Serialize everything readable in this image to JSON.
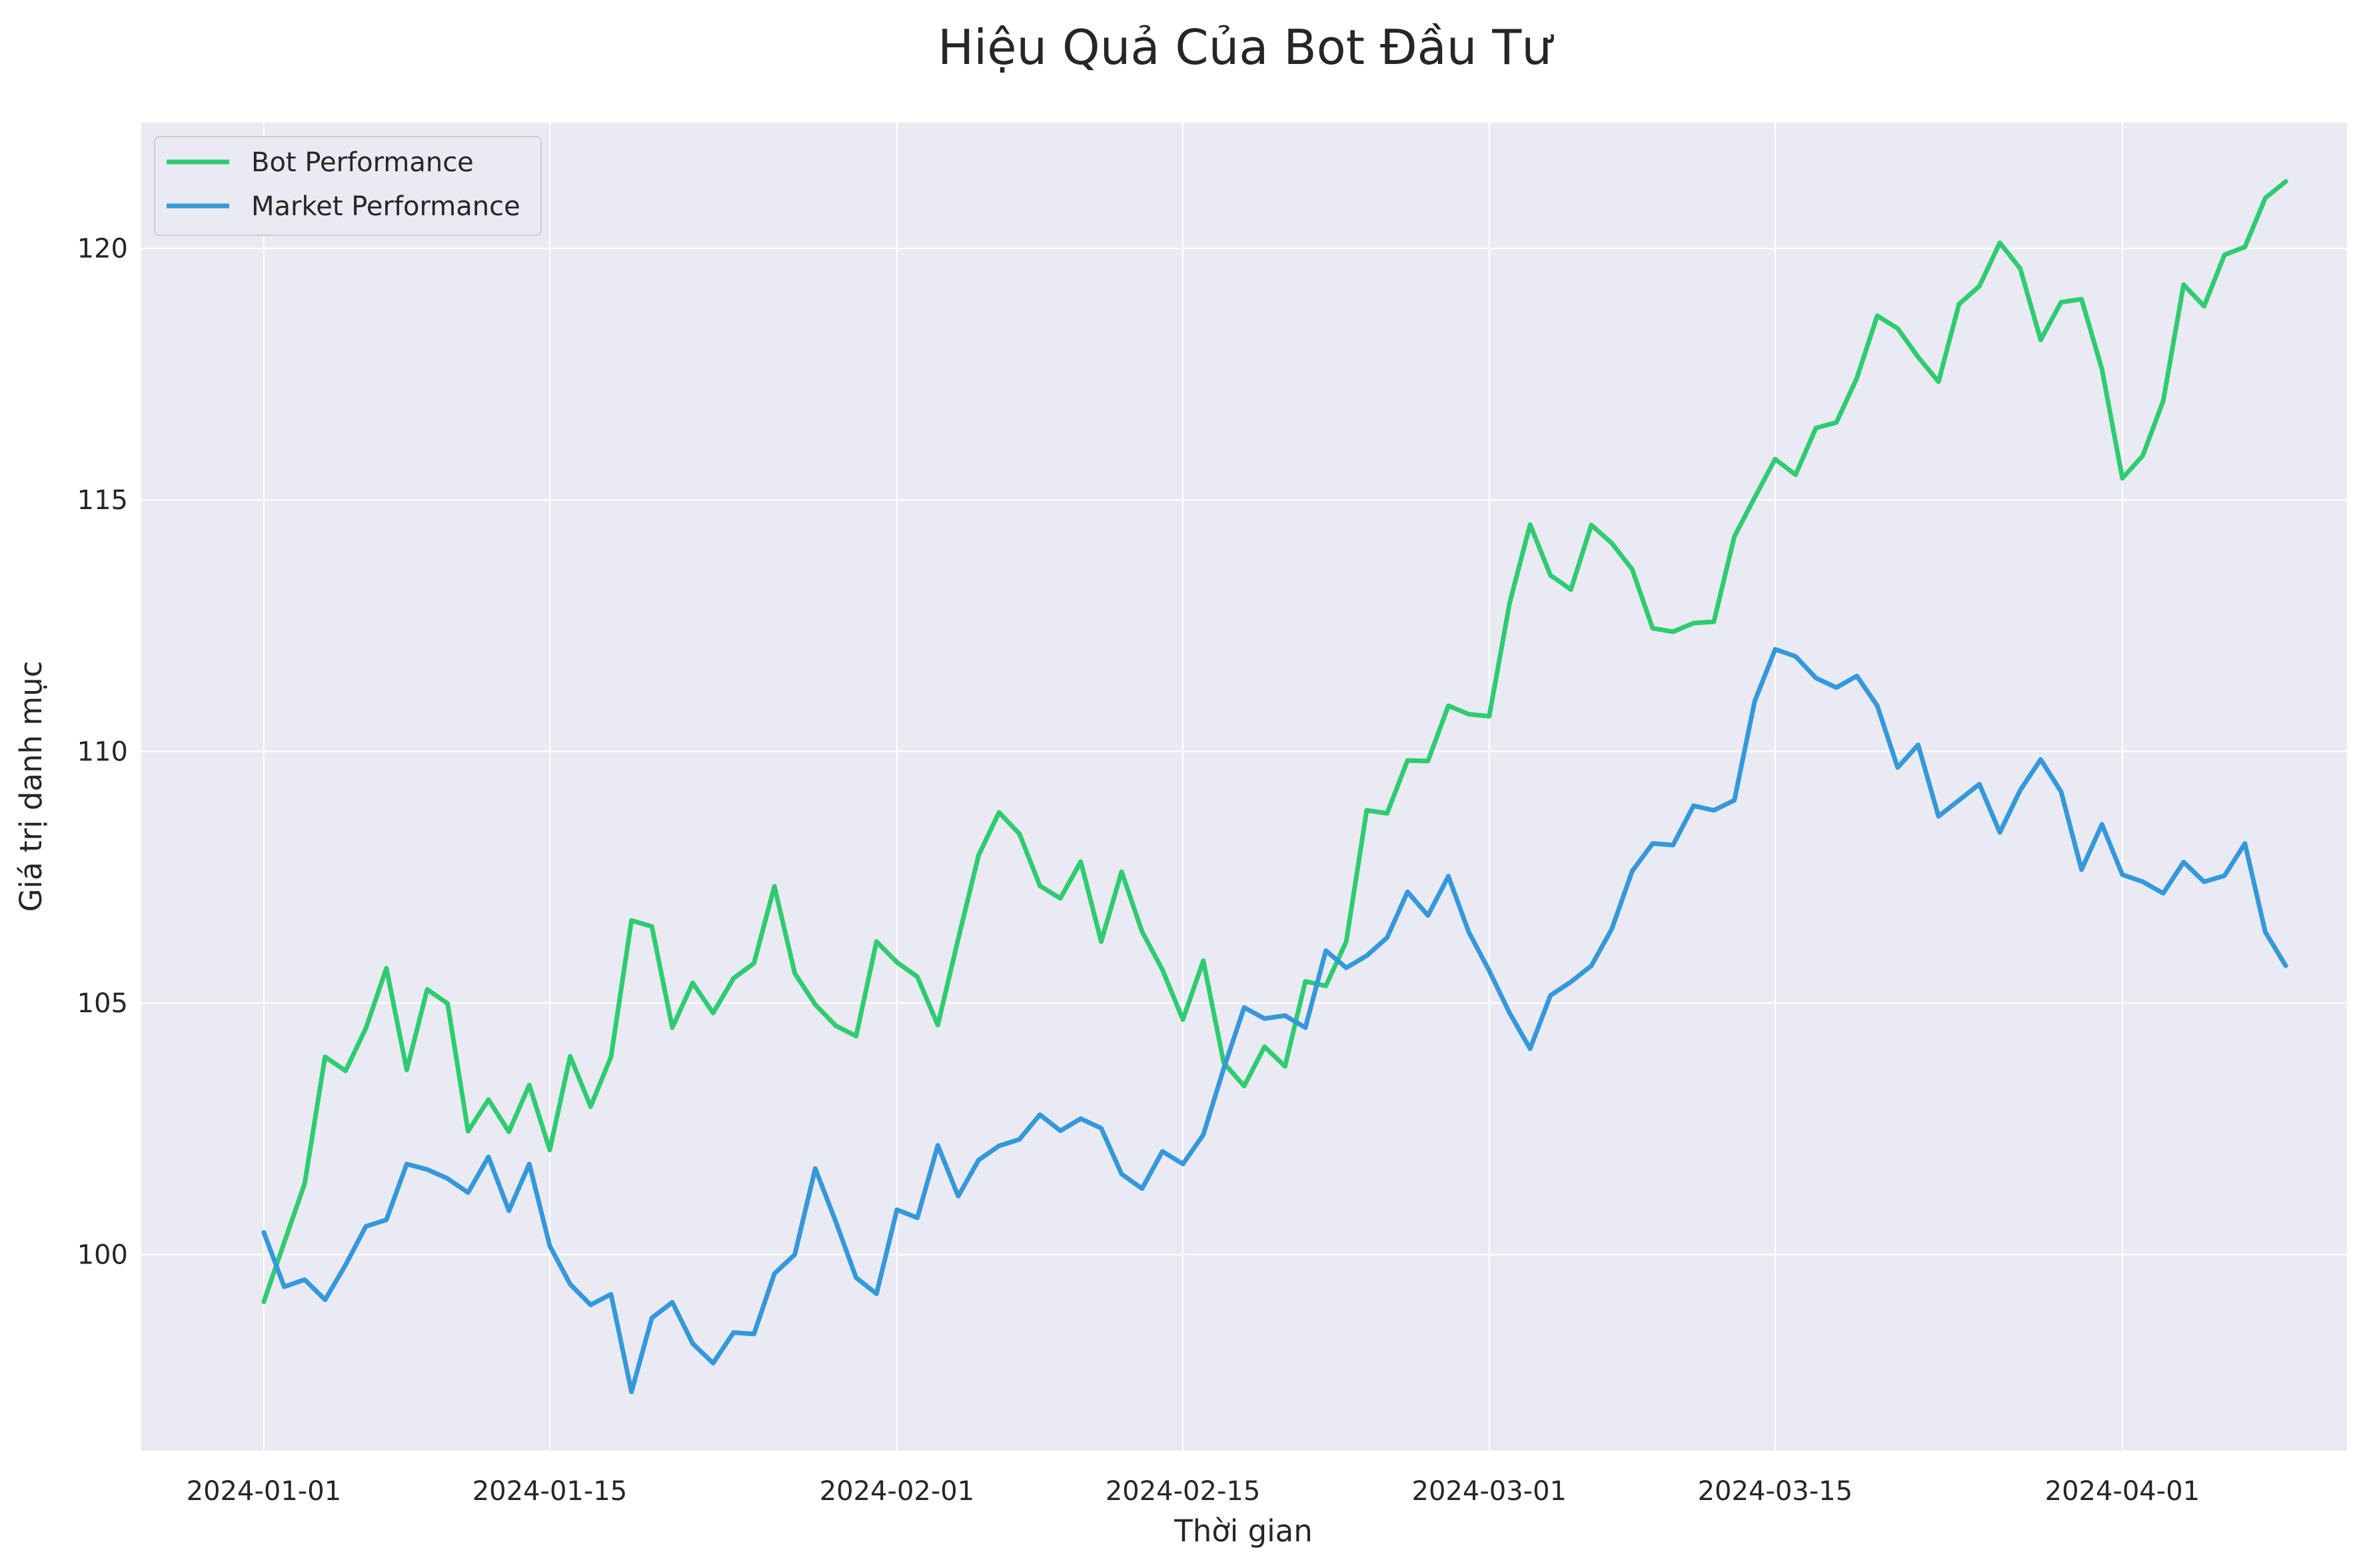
{
  "chart_data": {
    "type": "line",
    "title": "Hiệu Quả Của Bot Đầu Tư",
    "xlabel": "Thời gian",
    "ylabel": "Giá trị danh mục",
    "xlim": [
      "2023-12-26",
      "2024-04-12"
    ],
    "ylim": [
      96.1,
      122.5
    ],
    "grid": true,
    "legend_position": "top-left",
    "x_ticks": [
      "2024-01-01",
      "2024-01-15",
      "2024-02-01",
      "2024-02-15",
      "2024-03-01",
      "2024-03-15",
      "2024-04-01"
    ],
    "y_ticks": [
      100,
      105,
      110,
      115,
      120
    ],
    "x_start": "2024-01-01",
    "x": [
      "2024-01-01",
      "2024-01-02",
      "2024-01-03",
      "2024-01-04",
      "2024-01-05",
      "2024-01-06",
      "2024-01-07",
      "2024-01-08",
      "2024-01-09",
      "2024-01-10",
      "2024-01-11",
      "2024-01-12",
      "2024-01-13",
      "2024-01-14",
      "2024-01-15",
      "2024-01-16",
      "2024-01-17",
      "2024-01-18",
      "2024-01-19",
      "2024-01-20",
      "2024-01-21",
      "2024-01-22",
      "2024-01-23",
      "2024-01-24",
      "2024-01-25",
      "2024-01-26",
      "2024-01-27",
      "2024-01-28",
      "2024-01-29",
      "2024-01-30",
      "2024-01-31",
      "2024-02-01",
      "2024-02-02",
      "2024-02-03",
      "2024-02-04",
      "2024-02-05",
      "2024-02-06",
      "2024-02-07",
      "2024-02-08",
      "2024-02-09",
      "2024-02-10",
      "2024-02-11",
      "2024-02-12",
      "2024-02-13",
      "2024-02-14",
      "2024-02-15",
      "2024-02-16",
      "2024-02-17",
      "2024-02-18",
      "2024-02-19",
      "2024-02-20",
      "2024-02-21",
      "2024-02-22",
      "2024-02-23",
      "2024-02-24",
      "2024-02-25",
      "2024-02-26",
      "2024-02-27",
      "2024-02-28",
      "2024-02-29",
      "2024-03-01",
      "2024-03-02",
      "2024-03-03",
      "2024-03-04",
      "2024-03-05",
      "2024-03-06",
      "2024-03-07",
      "2024-03-08",
      "2024-03-09",
      "2024-03-10",
      "2024-03-11",
      "2024-03-12",
      "2024-03-13",
      "2024-03-14",
      "2024-03-15",
      "2024-03-16",
      "2024-03-17",
      "2024-03-18",
      "2024-03-19",
      "2024-03-20",
      "2024-03-21",
      "2024-03-22",
      "2024-03-23",
      "2024-03-24",
      "2024-03-25",
      "2024-03-26",
      "2024-03-27",
      "2024-03-28",
      "2024-03-29",
      "2024-03-30",
      "2024-03-31",
      "2024-04-01",
      "2024-04-02",
      "2024-04-03",
      "2024-04-04",
      "2024-04-05",
      "2024-04-06",
      "2024-04-07",
      "2024-04-08",
      "2024-04-09"
    ],
    "series": [
      {
        "name": "Bot Performance",
        "color": "#2ecc71",
        "values": [
          99.06,
          100.24,
          101.41,
          103.93,
          103.65,
          104.5,
          105.69,
          103.67,
          105.27,
          104.99,
          102.45,
          103.08,
          102.44,
          103.37,
          102.08,
          103.94,
          102.94,
          103.93,
          106.64,
          106.52,
          104.51,
          105.4,
          104.8,
          105.49,
          105.79,
          107.32,
          105.59,
          104.97,
          104.55,
          104.34,
          106.22,
          105.81,
          105.52,
          104.56,
          106.27,
          107.94,
          108.79,
          108.36,
          107.33,
          107.08,
          107.81,
          106.22,
          107.61,
          106.42,
          105.66,
          104.67,
          105.84,
          103.81,
          103.35,
          104.13,
          103.74,
          105.43,
          105.34,
          106.22,
          108.83,
          108.77,
          109.82,
          109.81,
          110.91,
          110.74,
          110.7,
          112.95,
          114.51,
          113.5,
          113.22,
          114.5,
          114.14,
          113.62,
          112.45,
          112.38,
          112.55,
          112.58,
          114.27,
          115.05,
          115.81,
          115.5,
          116.43,
          116.54,
          117.42,
          118.66,
          118.41,
          117.84,
          117.35,
          118.89,
          119.25,
          120.11,
          119.6,
          118.18,
          118.93,
          118.99,
          117.6,
          115.43,
          115.88,
          116.97,
          119.28,
          118.85,
          119.87,
          120.03,
          121.0,
          121.33
        ]
      },
      {
        "name": "Market Performance",
        "color": "#3498db",
        "values": [
          100.44,
          99.36,
          99.5,
          99.1,
          99.79,
          100.56,
          100.69,
          101.8,
          101.69,
          101.51,
          101.23,
          101.94,
          100.87,
          101.8,
          100.17,
          99.41,
          99.0,
          99.21,
          97.27,
          98.74,
          99.05,
          98.23,
          97.84,
          98.45,
          98.42,
          99.62,
          100.0,
          101.71,
          100.66,
          99.54,
          99.22,
          100.89,
          100.73,
          102.17,
          101.16,
          101.88,
          102.16,
          102.29,
          102.78,
          102.46,
          102.7,
          102.51,
          101.6,
          101.31,
          102.05,
          101.8,
          102.38,
          103.7,
          104.91,
          104.69,
          104.75,
          104.51,
          106.04,
          105.7,
          105.94,
          106.3,
          107.21,
          106.74,
          107.52,
          106.41,
          105.64,
          104.8,
          104.09,
          105.15,
          105.42,
          105.74,
          106.47,
          107.62,
          108.17,
          108.14,
          108.92,
          108.83,
          109.03,
          111.0,
          112.03,
          111.89,
          111.46,
          111.27,
          111.5,
          110.91,
          109.68,
          110.13,
          108.71,
          109.03,
          109.35,
          108.39,
          109.23,
          109.84,
          109.2,
          107.65,
          108.55,
          107.55,
          107.41,
          107.18,
          107.8,
          107.41,
          107.53,
          108.17,
          106.41,
          105.74
        ]
      }
    ]
  }
}
